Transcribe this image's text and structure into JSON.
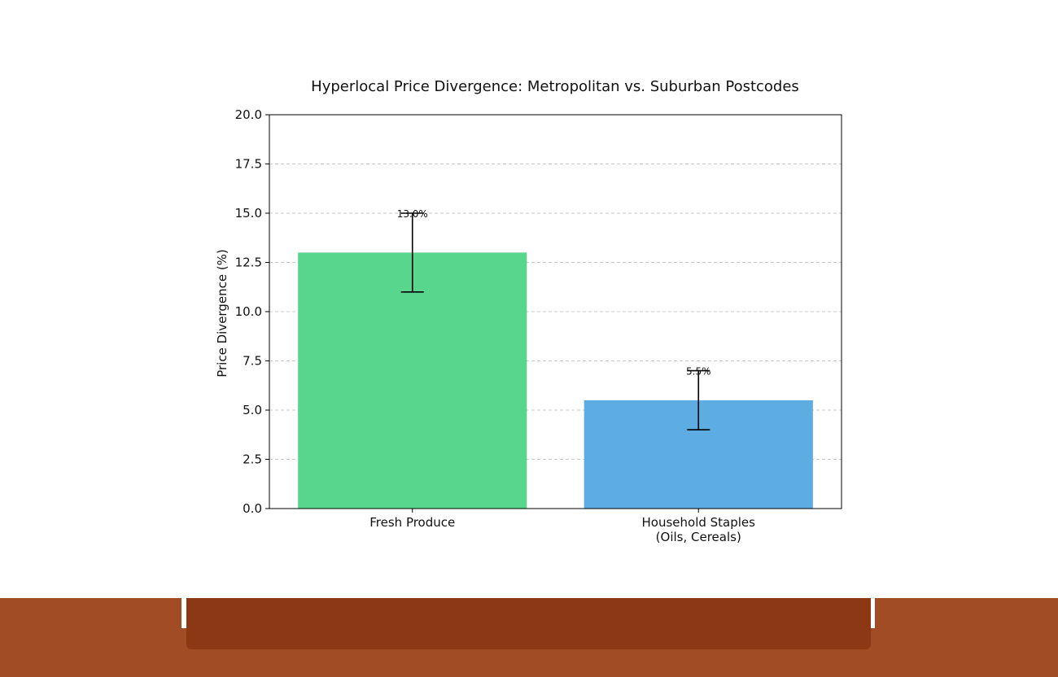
{
  "chart_data": {
    "type": "bar",
    "title": "Hyperlocal Price Divergence: Metropolitan vs. Suburban Postcodes",
    "xlabel": "",
    "ylabel": "Price Divergence (%)",
    "ylim": [
      0,
      20
    ],
    "yticks": [
      "0.0",
      "2.5",
      "5.0",
      "7.5",
      "10.0",
      "12.5",
      "15.0",
      "17.5",
      "20.0"
    ],
    "grid": "horizontal dashed",
    "categories": [
      [
        "Fresh Produce"
      ],
      [
        "Household Staples",
        "(Oils, Cereals)"
      ]
    ],
    "values": [
      13.0,
      5.5
    ],
    "error_low": [
      11.0,
      4.0
    ],
    "error_high": [
      15.0,
      7.0
    ],
    "data_labels": [
      "13.0%",
      "5.5%"
    ],
    "colors": [
      "#58d68d",
      "#5dade2"
    ]
  },
  "decor": {
    "strip_color": "#a14c24",
    "panel_color": "#8d3815"
  }
}
